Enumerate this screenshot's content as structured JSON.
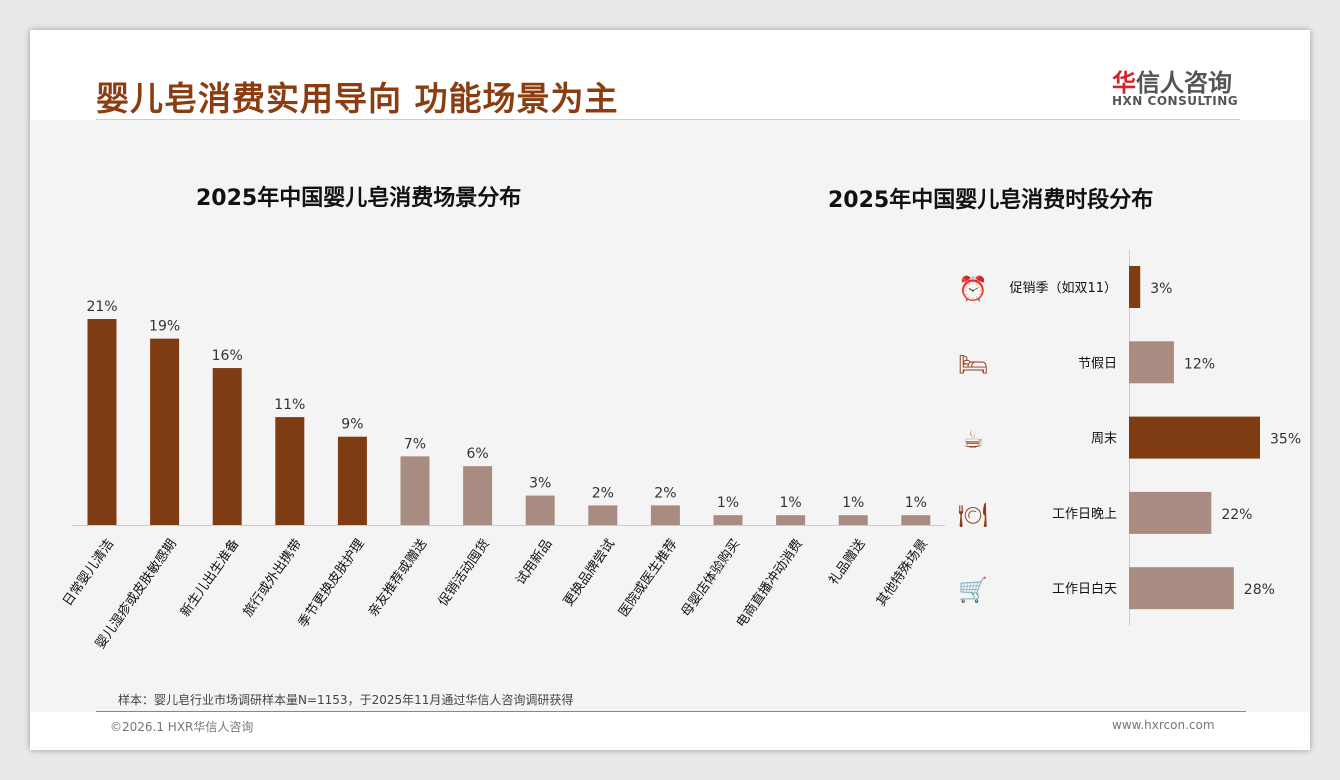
{
  "header": {
    "title": "婴儿皂消费实用导向 功能场景为主",
    "logo_cn_accent": "华",
    "logo_cn_rest": "信人咨询",
    "logo_en": "HXN CONSULTING"
  },
  "colors": {
    "dark": "#7f3c12",
    "light": "#a88c82"
  },
  "chart_data": [
    {
      "type": "bar",
      "title": "2025年中国婴儿皂消费场景分布",
      "categories": [
        "日常婴儿清洁",
        "婴儿湿疹或皮肤敏感期",
        "新生儿出生准备",
        "旅行或外出携带",
        "季节更换皮肤护理",
        "亲友推荐或赠送",
        "促销活动囤货",
        "试用新品",
        "更换品牌尝试",
        "医院或医生推荐",
        "母婴店体验购买",
        "电商直播冲动消费",
        "礼品赠送",
        "其他特殊场景"
      ],
      "values": [
        21,
        19,
        16,
        11,
        9,
        7,
        6,
        3,
        2,
        2,
        1,
        1,
        1,
        1
      ],
      "labels": [
        "21%",
        "19%",
        "16%",
        "11%",
        "9%",
        "7%",
        "6%",
        "3%",
        "2%",
        "2%",
        "1%",
        "1%",
        "1%",
        "1%"
      ],
      "highlight": [
        true,
        true,
        true,
        true,
        true,
        false,
        false,
        false,
        false,
        false,
        false,
        false,
        false,
        false
      ],
      "ylim": [
        0,
        21
      ]
    },
    {
      "type": "bar",
      "orientation": "horizontal",
      "title": "2025年中国婴儿皂消费时段分布",
      "categories": [
        "促销季（如双11）",
        "节假日",
        "周末",
        "工作日晚上",
        "工作日白天"
      ],
      "values": [
        3,
        12,
        35,
        22,
        28
      ],
      "labels": [
        "3%",
        "12%",
        "35%",
        "22%",
        "28%"
      ],
      "icons": [
        "alarm-clock-icon",
        "bed-icon",
        "coffee-cup-icon",
        "dinner-plate-icon",
        "shopping-cart-icon"
      ],
      "highlight": [
        true,
        false,
        true,
        false,
        false
      ]
    }
  ],
  "footer": {
    "note": "样本：婴儿皂行业市场调研样本量N=1153，于2025年11月通过华信人咨询调研获得",
    "copyright": "©2026.1 HXR华信人咨询",
    "site": "www.hxrcon.com"
  }
}
